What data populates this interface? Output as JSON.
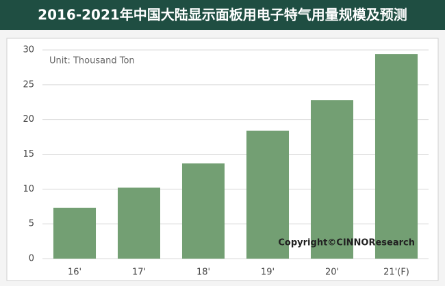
{
  "chart_data": {
    "type": "bar",
    "title": "2016-2021年中国大陆显示面板用电子特气用量规模及预测",
    "unit_note": "Unit: Thousand Ton",
    "source": "Copyright©CINNOResearch",
    "categories": [
      "16'",
      "17'",
      "18'",
      "19'",
      "20'",
      "21'(F)"
    ],
    "values": [
      7.3,
      10.2,
      13.7,
      18.4,
      22.8,
      29.4
    ],
    "color": "#739f73",
    "ylim": [
      0,
      30
    ],
    "yticks": [
      0,
      5,
      10,
      15,
      20,
      25,
      30
    ],
    "grid": true
  }
}
